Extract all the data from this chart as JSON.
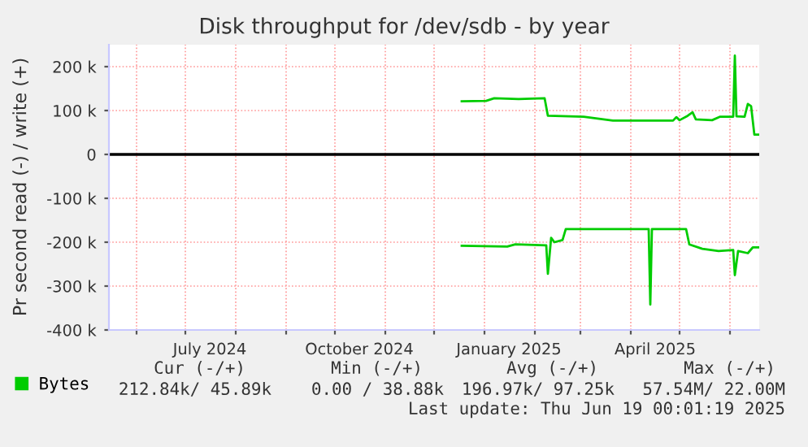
{
  "chart_data": {
    "type": "line",
    "title": "Disk throughput for /dev/sdb - by year",
    "ylabel": "Pr second read (-) / write (+)",
    "xlim": [
      "2024-05-15",
      "2025-06-19"
    ],
    "xticks": [
      {
        "value": "2024-06-01",
        "label": null
      },
      {
        "value": "2024-07-01",
        "label": null
      },
      {
        "value": "2024-07-16",
        "label": "July 2024"
      },
      {
        "value": "2024-08-01",
        "label": null
      },
      {
        "value": "2024-09-01",
        "label": null
      },
      {
        "value": "2024-10-01",
        "label": null
      },
      {
        "value": "2024-10-16",
        "label": "October 2024"
      },
      {
        "value": "2024-11-01",
        "label": null
      },
      {
        "value": "2024-12-01",
        "label": null
      },
      {
        "value": "2025-01-01",
        "label": null
      },
      {
        "value": "2025-01-16",
        "label": "January 2025"
      },
      {
        "value": "2025-02-01",
        "label": null
      },
      {
        "value": "2025-03-01",
        "label": null
      },
      {
        "value": "2025-04-01",
        "label": null
      },
      {
        "value": "2025-04-16",
        "label": "April 2025"
      },
      {
        "value": "2025-05-01",
        "label": null
      },
      {
        "value": "2025-06-01",
        "label": null
      }
    ],
    "ylim": [
      -400000,
      250000
    ],
    "yticks": [
      {
        "value": -400000,
        "label": "-400 k"
      },
      {
        "value": -300000,
        "label": "-300 k"
      },
      {
        "value": -200000,
        "label": "-200 k"
      },
      {
        "value": -100000,
        "label": "-100 k"
      },
      0,
      {
        "value": 100000,
        "label": "100 k"
      },
      {
        "value": 200000,
        "label": "200 k"
      }
    ],
    "grid": true,
    "legend": "bottom left",
    "ref_lines": [
      {
        "axis": "y",
        "value": 0,
        "label": null,
        "color": "#000000"
      }
    ],
    "series": [
      {
        "name": "Bytes",
        "color": "#00cc00",
        "x": [
          "2024-12-18",
          "2025-01-02",
          "2025-01-07",
          "2025-01-22",
          "2025-02-07",
          "2025-02-09",
          "2025-03-03",
          "2025-03-21",
          "2025-04-27",
          "2025-04-29",
          "2025-05-01",
          "2025-05-06",
          "2025-05-09",
          "2025-05-11",
          "2025-05-21",
          "2025-05-26",
          "2025-06-03",
          "2025-06-04",
          "2025-06-05",
          "2025-06-10",
          "2025-06-12",
          "2025-06-14",
          "2025-06-16",
          "2025-06-19"
        ],
        "values": [
          121000,
          122000,
          128000,
          126000,
          128000,
          88000,
          86000,
          77000,
          77000,
          85000,
          78000,
          88000,
          96000,
          80000,
          78000,
          86000,
          86000,
          225000,
          87000,
          86000,
          115000,
          110000,
          45000,
          45000
        ]
      },
      {
        "color": "#00cc00",
        "x": [
          "2024-12-18",
          "2025-01-15",
          "2025-01-20",
          "2025-02-08",
          "2025-02-09",
          "2025-02-11",
          "2025-02-13",
          "2025-02-18",
          "2025-02-20",
          "2025-04-12",
          "2025-04-13",
          "2025-04-14",
          "2025-05-05",
          "2025-05-07",
          "2025-05-15",
          "2025-05-25",
          "2025-06-03",
          "2025-06-04",
          "2025-06-06",
          "2025-06-12",
          "2025-06-15",
          "2025-06-19"
        ],
        "values": [
          -208000,
          -210000,
          -205000,
          -207000,
          -272000,
          -190000,
          -200000,
          -195000,
          -170000,
          -170000,
          -342000,
          -170000,
          -170000,
          -205000,
          -215000,
          -220000,
          -218000,
          -275000,
          -220000,
          -225000,
          -212000,
          -212000
        ]
      }
    ],
    "annotations": [
      "Cur (-/+)",
      "Min (-/+)",
      "Avg (-/+)",
      "Max (-/+)",
      "212.84k/ 45.89k",
      "0.00 / 38.88k",
      "196.97k/ 97.25k",
      "57.54M/ 22.00M",
      "Last update: Thu Jun 19 00:01:19 2025"
    ]
  }
}
